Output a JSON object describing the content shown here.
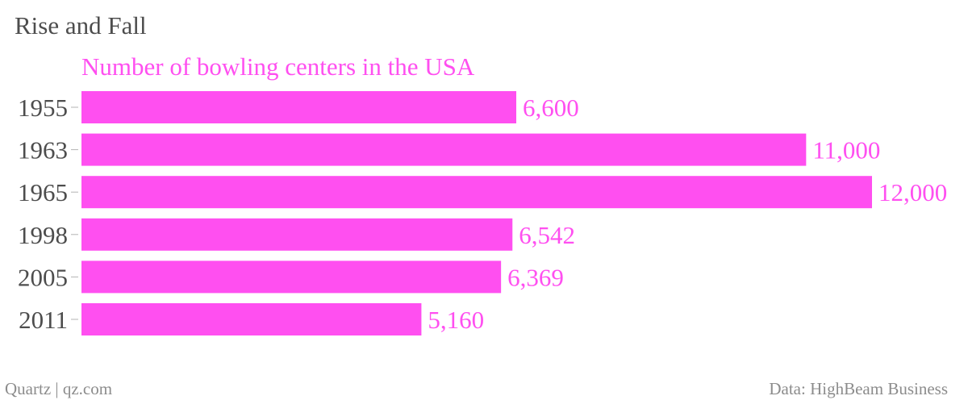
{
  "colors": {
    "bar": "#ff4ff0",
    "accent_text": "#ff4ff0",
    "title_text": "#4d4d4d",
    "footer_text": "#8c8c8c"
  },
  "footer": {
    "source_left": "Quartz | qz.com",
    "source_right": "Data: HighBeam Business"
  },
  "chart_data": {
    "type": "bar",
    "orientation": "horizontal",
    "title": "Rise and Fall",
    "subtitle": "Number of bowling centers in the USA",
    "categories": [
      "1955",
      "1963",
      "1965",
      "1998",
      "2005",
      "2011"
    ],
    "values": [
      6600,
      11000,
      12000,
      6542,
      6369,
      5160
    ],
    "value_labels": [
      "6,600",
      "11,000",
      "12,000",
      "6,542",
      "6,369",
      "5,160"
    ],
    "xlim": [
      0,
      12000
    ],
    "grid": false,
    "legend": "none"
  }
}
